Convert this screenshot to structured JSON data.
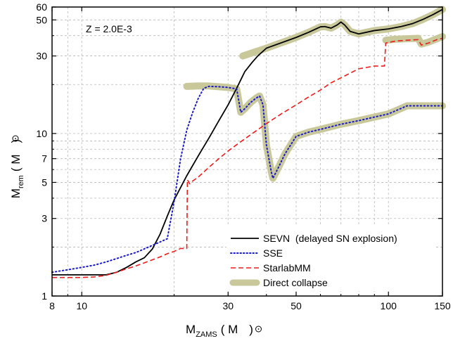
{
  "chart_data": {
    "type": "line",
    "title": "",
    "annotation": "Z = 2.0E-3",
    "xlabel": {
      "main": "M",
      "sub": "ZAMS",
      "unit": "( M",
      "unit_close": ")"
    },
    "ylabel": {
      "main": "M",
      "sub": "rem",
      "unit": "( M",
      "unit_close": ")"
    },
    "x_scale": "log",
    "y_scale": "log",
    "xlim": [
      8,
      150
    ],
    "ylim": [
      1,
      60
    ],
    "x_ticks": [
      {
        "value": 8,
        "label": "8"
      },
      {
        "value": 10,
        "label": "10"
      },
      {
        "value": 30,
        "label": "30"
      },
      {
        "value": 50,
        "label": "50"
      },
      {
        "value": 100,
        "label": "100"
      },
      {
        "value": 150,
        "label": "150"
      }
    ],
    "y_ticks": [
      {
        "value": 1,
        "label": "1"
      },
      {
        "value": 3,
        "label": "3"
      },
      {
        "value": 5,
        "label": "5"
      },
      {
        "value": 7,
        "label": "7"
      },
      {
        "value": 10,
        "label": "10"
      },
      {
        "value": 30,
        "label": "30"
      },
      {
        "value": 50,
        "label": "50"
      },
      {
        "value": 60,
        "label": "60"
      }
    ],
    "x_grid": [
      8,
      9,
      10,
      20,
      30,
      40,
      50,
      60,
      70,
      80,
      90,
      100,
      150
    ],
    "y_grid": [
      1,
      2,
      3,
      4,
      5,
      6,
      7,
      8,
      9,
      10,
      20,
      30,
      40,
      50,
      60
    ],
    "grid": true,
    "legend_position": "bottom-right",
    "series": [
      {
        "name": "Direct collapse",
        "style": "thick-band",
        "color": "#c8c89a",
        "segments": [
          [
            [
              22,
              19.5
            ],
            [
              24,
              19.6
            ],
            [
              26,
              19.6
            ],
            [
              28,
              19.4
            ],
            [
              30,
              19.2
            ],
            [
              32,
              18.8
            ],
            [
              33,
              13.5
            ],
            [
              34,
              14.2
            ],
            [
              35.5,
              15.5
            ],
            [
              37,
              16.5
            ],
            [
              38,
              17.0
            ],
            [
              39,
              15.0
            ],
            [
              40,
              8.5
            ],
            [
              41.5,
              5.8
            ],
            [
              42,
              5.3
            ],
            [
              44,
              6.3
            ],
            [
              46,
              7.5
            ],
            [
              50,
              9.6
            ],
            [
              55,
              10.2
            ],
            [
              60,
              10.6
            ],
            [
              70,
              11.4
            ],
            [
              80,
              12.0
            ],
            [
              100,
              13.2
            ],
            [
              115,
              14.8
            ],
            [
              130,
              14.8
            ],
            [
              150,
              14.8
            ]
          ],
          [
            [
              33.5,
              30.0
            ],
            [
              40,
              33.5
            ],
            [
              50,
              39.0
            ],
            [
              55,
              42.0
            ],
            [
              60,
              45.3
            ],
            [
              62,
              45.5
            ],
            [
              65,
              44.5
            ],
            [
              68,
              46.5
            ],
            [
              70,
              48.5
            ],
            [
              72,
              46.5
            ],
            [
              75,
              42.5
            ],
            [
              80,
              41.0
            ],
            [
              90,
              43.0
            ],
            [
              100,
              44.0
            ],
            [
              110,
              45.5
            ],
            [
              120,
              47.5
            ],
            [
              130,
              50.5
            ],
            [
              140,
              54.0
            ],
            [
              150,
              58.0
            ]
          ],
          [
            [
              98,
              37.5
            ],
            [
              105,
              38.0
            ],
            [
              115,
              38.3
            ],
            [
              125,
              38.5
            ],
            [
              128,
              35.5
            ],
            [
              135,
              36.5
            ],
            [
              145,
              38.5
            ],
            [
              150,
              39.5
            ]
          ]
        ]
      },
      {
        "name": "SEVN  (delayed SN explosion)",
        "style": "solid",
        "color": "#000000",
        "segments": [
          [
            [
              8,
              1.35
            ],
            [
              9,
              1.35
            ],
            [
              10,
              1.35
            ],
            [
              11,
              1.35
            ],
            [
              12,
              1.35
            ],
            [
              13,
              1.4
            ],
            [
              14,
              1.5
            ],
            [
              15,
              1.62
            ],
            [
              16,
              1.72
            ],
            [
              17,
              1.95
            ],
            [
              18,
              2.4
            ],
            [
              19,
              3.1
            ],
            [
              20,
              3.9
            ],
            [
              22,
              5.5
            ],
            [
              24,
              7.3
            ],
            [
              26,
              9.4
            ],
            [
              28,
              12.0
            ],
            [
              30,
              15.0
            ],
            [
              32,
              19.0
            ],
            [
              34,
              24.0
            ],
            [
              36,
              27.5
            ],
            [
              37.5,
              30.0
            ],
            [
              40,
              33.5
            ],
            [
              50,
              39.0
            ],
            [
              55,
              42.0
            ],
            [
              60,
              45.3
            ],
            [
              62,
              45.5
            ],
            [
              65,
              44.5
            ],
            [
              68,
              46.5
            ],
            [
              70,
              48.5
            ],
            [
              72,
              46.5
            ],
            [
              75,
              42.5
            ],
            [
              80,
              41.0
            ],
            [
              90,
              43.0
            ],
            [
              100,
              44.0
            ],
            [
              110,
              45.5
            ],
            [
              120,
              47.5
            ],
            [
              130,
              50.5
            ],
            [
              140,
              54.0
            ],
            [
              150,
              58.0
            ]
          ]
        ]
      },
      {
        "name": "SSE",
        "style": "dotted",
        "color": "#1a1acc",
        "segments": [
          [
            [
              8,
              1.4
            ],
            [
              9,
              1.45
            ],
            [
              10,
              1.5
            ],
            [
              11,
              1.55
            ],
            [
              12,
              1.62
            ],
            [
              13,
              1.7
            ],
            [
              14,
              1.78
            ],
            [
              15,
              1.85
            ],
            [
              16,
              1.95
            ],
            [
              17,
              2.05
            ],
            [
              18,
              2.15
            ],
            [
              19,
              2.25
            ],
            [
              20,
              3.8
            ],
            [
              21,
              7.0
            ],
            [
              22,
              10.5
            ],
            [
              23,
              13.5
            ],
            [
              24,
              16.5
            ],
            [
              25,
              19.0
            ],
            [
              26,
              19.5
            ],
            [
              28,
              19.4
            ],
            [
              30,
              19.2
            ],
            [
              32,
              18.8
            ],
            [
              33,
              13.5
            ],
            [
              34,
              14.2
            ],
            [
              35.5,
              15.5
            ],
            [
              37,
              16.5
            ],
            [
              38,
              17.0
            ],
            [
              39,
              15.0
            ],
            [
              40,
              8.5
            ],
            [
              41.5,
              5.8
            ],
            [
              42,
              5.3
            ],
            [
              44,
              6.3
            ],
            [
              46,
              7.5
            ],
            [
              50,
              9.6
            ],
            [
              55,
              10.2
            ],
            [
              60,
              10.6
            ],
            [
              70,
              11.4
            ],
            [
              80,
              12.0
            ],
            [
              100,
              13.2
            ],
            [
              115,
              14.8
            ],
            [
              130,
              14.8
            ],
            [
              150,
              14.8
            ]
          ]
        ]
      },
      {
        "name": "StarlabMM",
        "style": "dashed",
        "color": "#ee1c1c",
        "segments": [
          [
            [
              8,
              1.3
            ],
            [
              9,
              1.3
            ],
            [
              10,
              1.3
            ],
            [
              11,
              1.31
            ],
            [
              12,
              1.34
            ],
            [
              13,
              1.4
            ],
            [
              14,
              1.47
            ],
            [
              15,
              1.53
            ],
            [
              16,
              1.6
            ],
            [
              17,
              1.67
            ],
            [
              18,
              1.74
            ],
            [
              19,
              1.82
            ],
            [
              20,
              1.88
            ],
            [
              21,
              1.96
            ],
            [
              22,
              1.96
            ],
            [
              22.1,
              5.2
            ],
            [
              22.5,
              4.9
            ],
            [
              23,
              5.1
            ],
            [
              24,
              5.4
            ],
            [
              26,
              6.2
            ],
            [
              28,
              7.0
            ],
            [
              30,
              7.8
            ],
            [
              33,
              8.9
            ],
            [
              36,
              10.0
            ],
            [
              40,
              11.5
            ],
            [
              45,
              13.3
            ],
            [
              50,
              15.0
            ],
            [
              55,
              16.8
            ],
            [
              60,
              18.5
            ],
            [
              65,
              20.5
            ],
            [
              70,
              22.0
            ],
            [
              75,
              23.5
            ],
            [
              80,
              25.0
            ],
            [
              90,
              26.0
            ],
            [
              97,
              26.0
            ],
            [
              98,
              36.0
            ],
            [
              105,
              37.0
            ],
            [
              115,
              37.5
            ],
            [
              125,
              37.8
            ],
            [
              128,
              35.0
            ],
            [
              135,
              36.0
            ],
            [
              145,
              38.0
            ],
            [
              150,
              38.5
            ]
          ]
        ]
      }
    ]
  }
}
